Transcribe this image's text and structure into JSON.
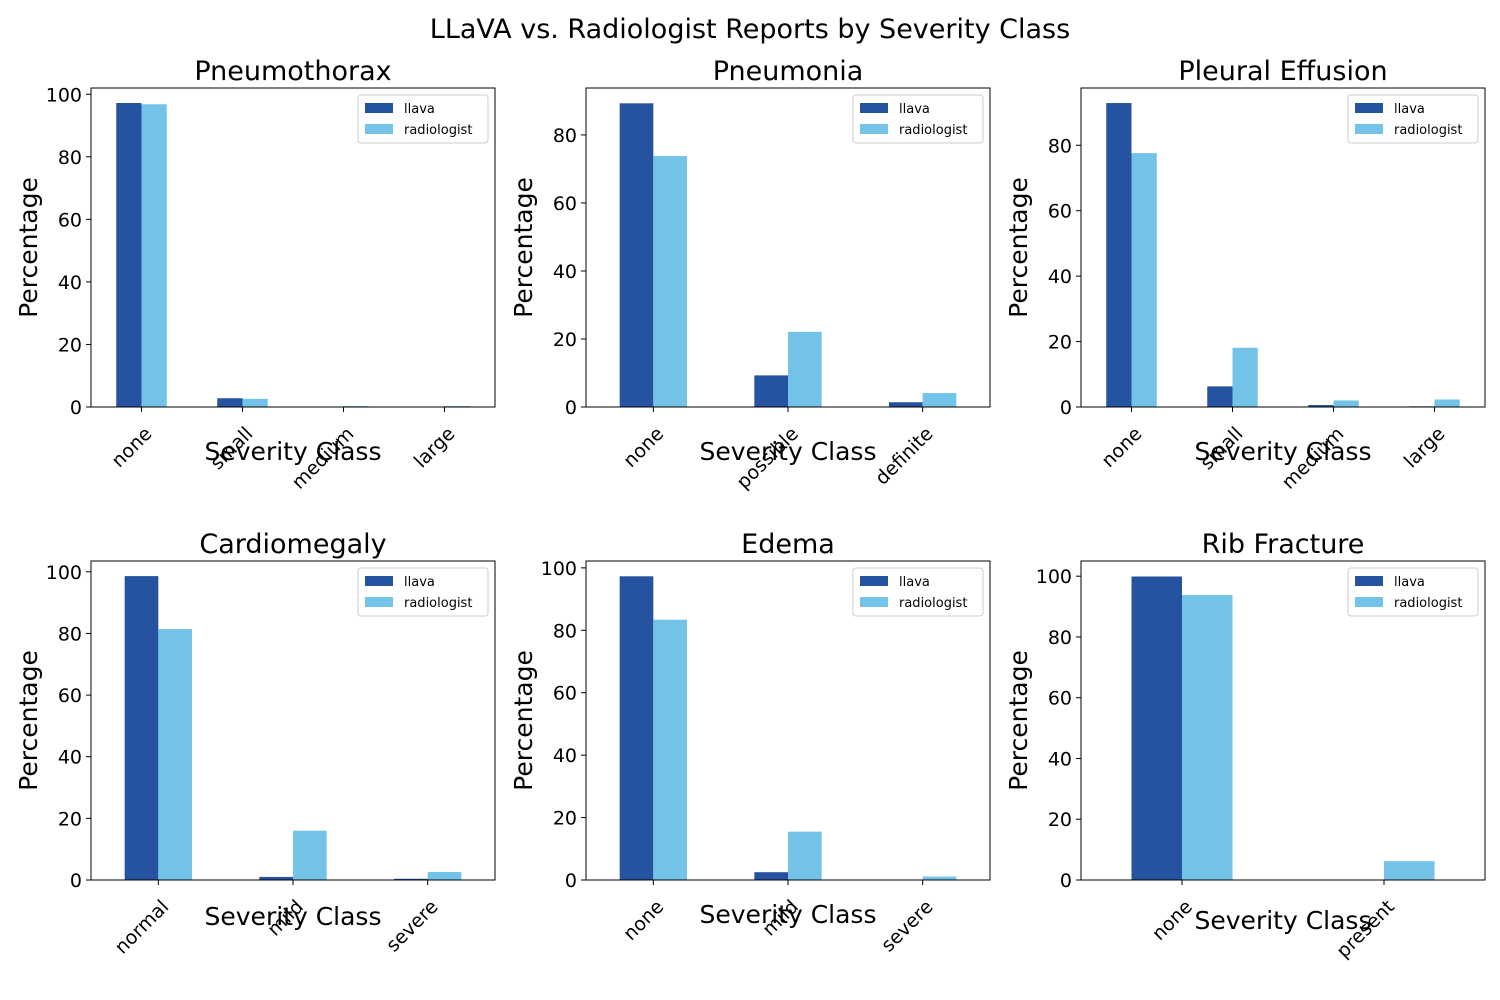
{
  "title": "LLaVA vs. Radiologist Reports by Severity Class",
  "colors": {
    "llava": "#2553a0",
    "radiologist": "#73c2e7"
  },
  "chart_data": [
    {
      "type": "bar",
      "title": "Pneumothorax",
      "xlabel": "Severity Class",
      "ylabel": "Percentage",
      "categories": [
        "none",
        "small",
        "medium",
        "large"
      ],
      "series": [
        {
          "name": "llava",
          "values": [
            97.2,
            2.8,
            0.0,
            0.0
          ]
        },
        {
          "name": "radiologist",
          "values": [
            96.8,
            2.6,
            0.3,
            0.3
          ]
        }
      ],
      "ylim": [
        0,
        102
      ],
      "yticks": [
        0,
        20,
        40,
        60,
        80,
        100
      ],
      "legend": [
        "llava",
        "radiologist"
      ],
      "legend_position": "top-right"
    },
    {
      "type": "bar",
      "title": "Pneumonia",
      "xlabel": "Severity Class",
      "ylabel": "Percentage",
      "categories": [
        "none",
        "possible",
        "definite"
      ],
      "series": [
        {
          "name": "llava",
          "values": [
            89.3,
            9.3,
            1.4
          ]
        },
        {
          "name": "radiologist",
          "values": [
            73.8,
            22.1,
            4.1
          ]
        }
      ],
      "ylim": [
        0,
        93.8
      ],
      "yticks": [
        0,
        20,
        40,
        60,
        80
      ],
      "legend": [
        "llava",
        "radiologist"
      ],
      "legend_position": "top-right"
    },
    {
      "type": "bar",
      "title": "Pleural Effusion",
      "xlabel": "Severity Class",
      "ylabel": "Percentage",
      "categories": [
        "none",
        "small",
        "medium",
        "large"
      ],
      "series": [
        {
          "name": "llava",
          "values": [
            92.9,
            6.3,
            0.6,
            0.2
          ]
        },
        {
          "name": "radiologist",
          "values": [
            77.6,
            18.1,
            2.0,
            2.3
          ]
        }
      ],
      "ylim": [
        0,
        97.5
      ],
      "yticks": [
        0,
        20,
        40,
        60,
        80
      ],
      "legend": [
        "llava",
        "radiologist"
      ],
      "legend_position": "top-right"
    },
    {
      "type": "bar",
      "title": "Cardiomegaly",
      "xlabel": "Severity Class",
      "ylabel": "Percentage",
      "categories": [
        "normal",
        "mild",
        "severe"
      ],
      "series": [
        {
          "name": "llava",
          "values": [
            98.6,
            1.0,
            0.4
          ]
        },
        {
          "name": "radiologist",
          "values": [
            81.4,
            16.0,
            2.6
          ]
        }
      ],
      "ylim": [
        0,
        103.5
      ],
      "yticks": [
        0,
        20,
        40,
        60,
        80,
        100
      ],
      "legend": [
        "llava",
        "radiologist"
      ],
      "legend_position": "top-right"
    },
    {
      "type": "bar",
      "title": "Edema",
      "xlabel": "Severity Class",
      "ylabel": "Percentage",
      "categories": [
        "none",
        "mild",
        "severe"
      ],
      "series": [
        {
          "name": "llava",
          "values": [
            97.3,
            2.5,
            0.0
          ]
        },
        {
          "name": "radiologist",
          "values": [
            83.4,
            15.5,
            1.1
          ]
        }
      ],
      "ylim": [
        0,
        102.2
      ],
      "yticks": [
        0,
        20,
        40,
        60,
        80,
        100
      ],
      "legend": [
        "llava",
        "radiologist"
      ],
      "legend_position": "top-right"
    },
    {
      "type": "bar",
      "title": "Rib Fracture",
      "xlabel": "Severity Class",
      "ylabel": "Percentage",
      "categories": [
        "none",
        "present"
      ],
      "series": [
        {
          "name": "llava",
          "values": [
            99.9,
            0.0
          ]
        },
        {
          "name": "radiologist",
          "values": [
            93.8,
            6.2
          ]
        }
      ],
      "ylim": [
        0,
        105
      ],
      "yticks": [
        0,
        20,
        40,
        60,
        80,
        100
      ],
      "legend": [
        "llava",
        "radiologist"
      ],
      "legend_position": "top-right"
    }
  ]
}
